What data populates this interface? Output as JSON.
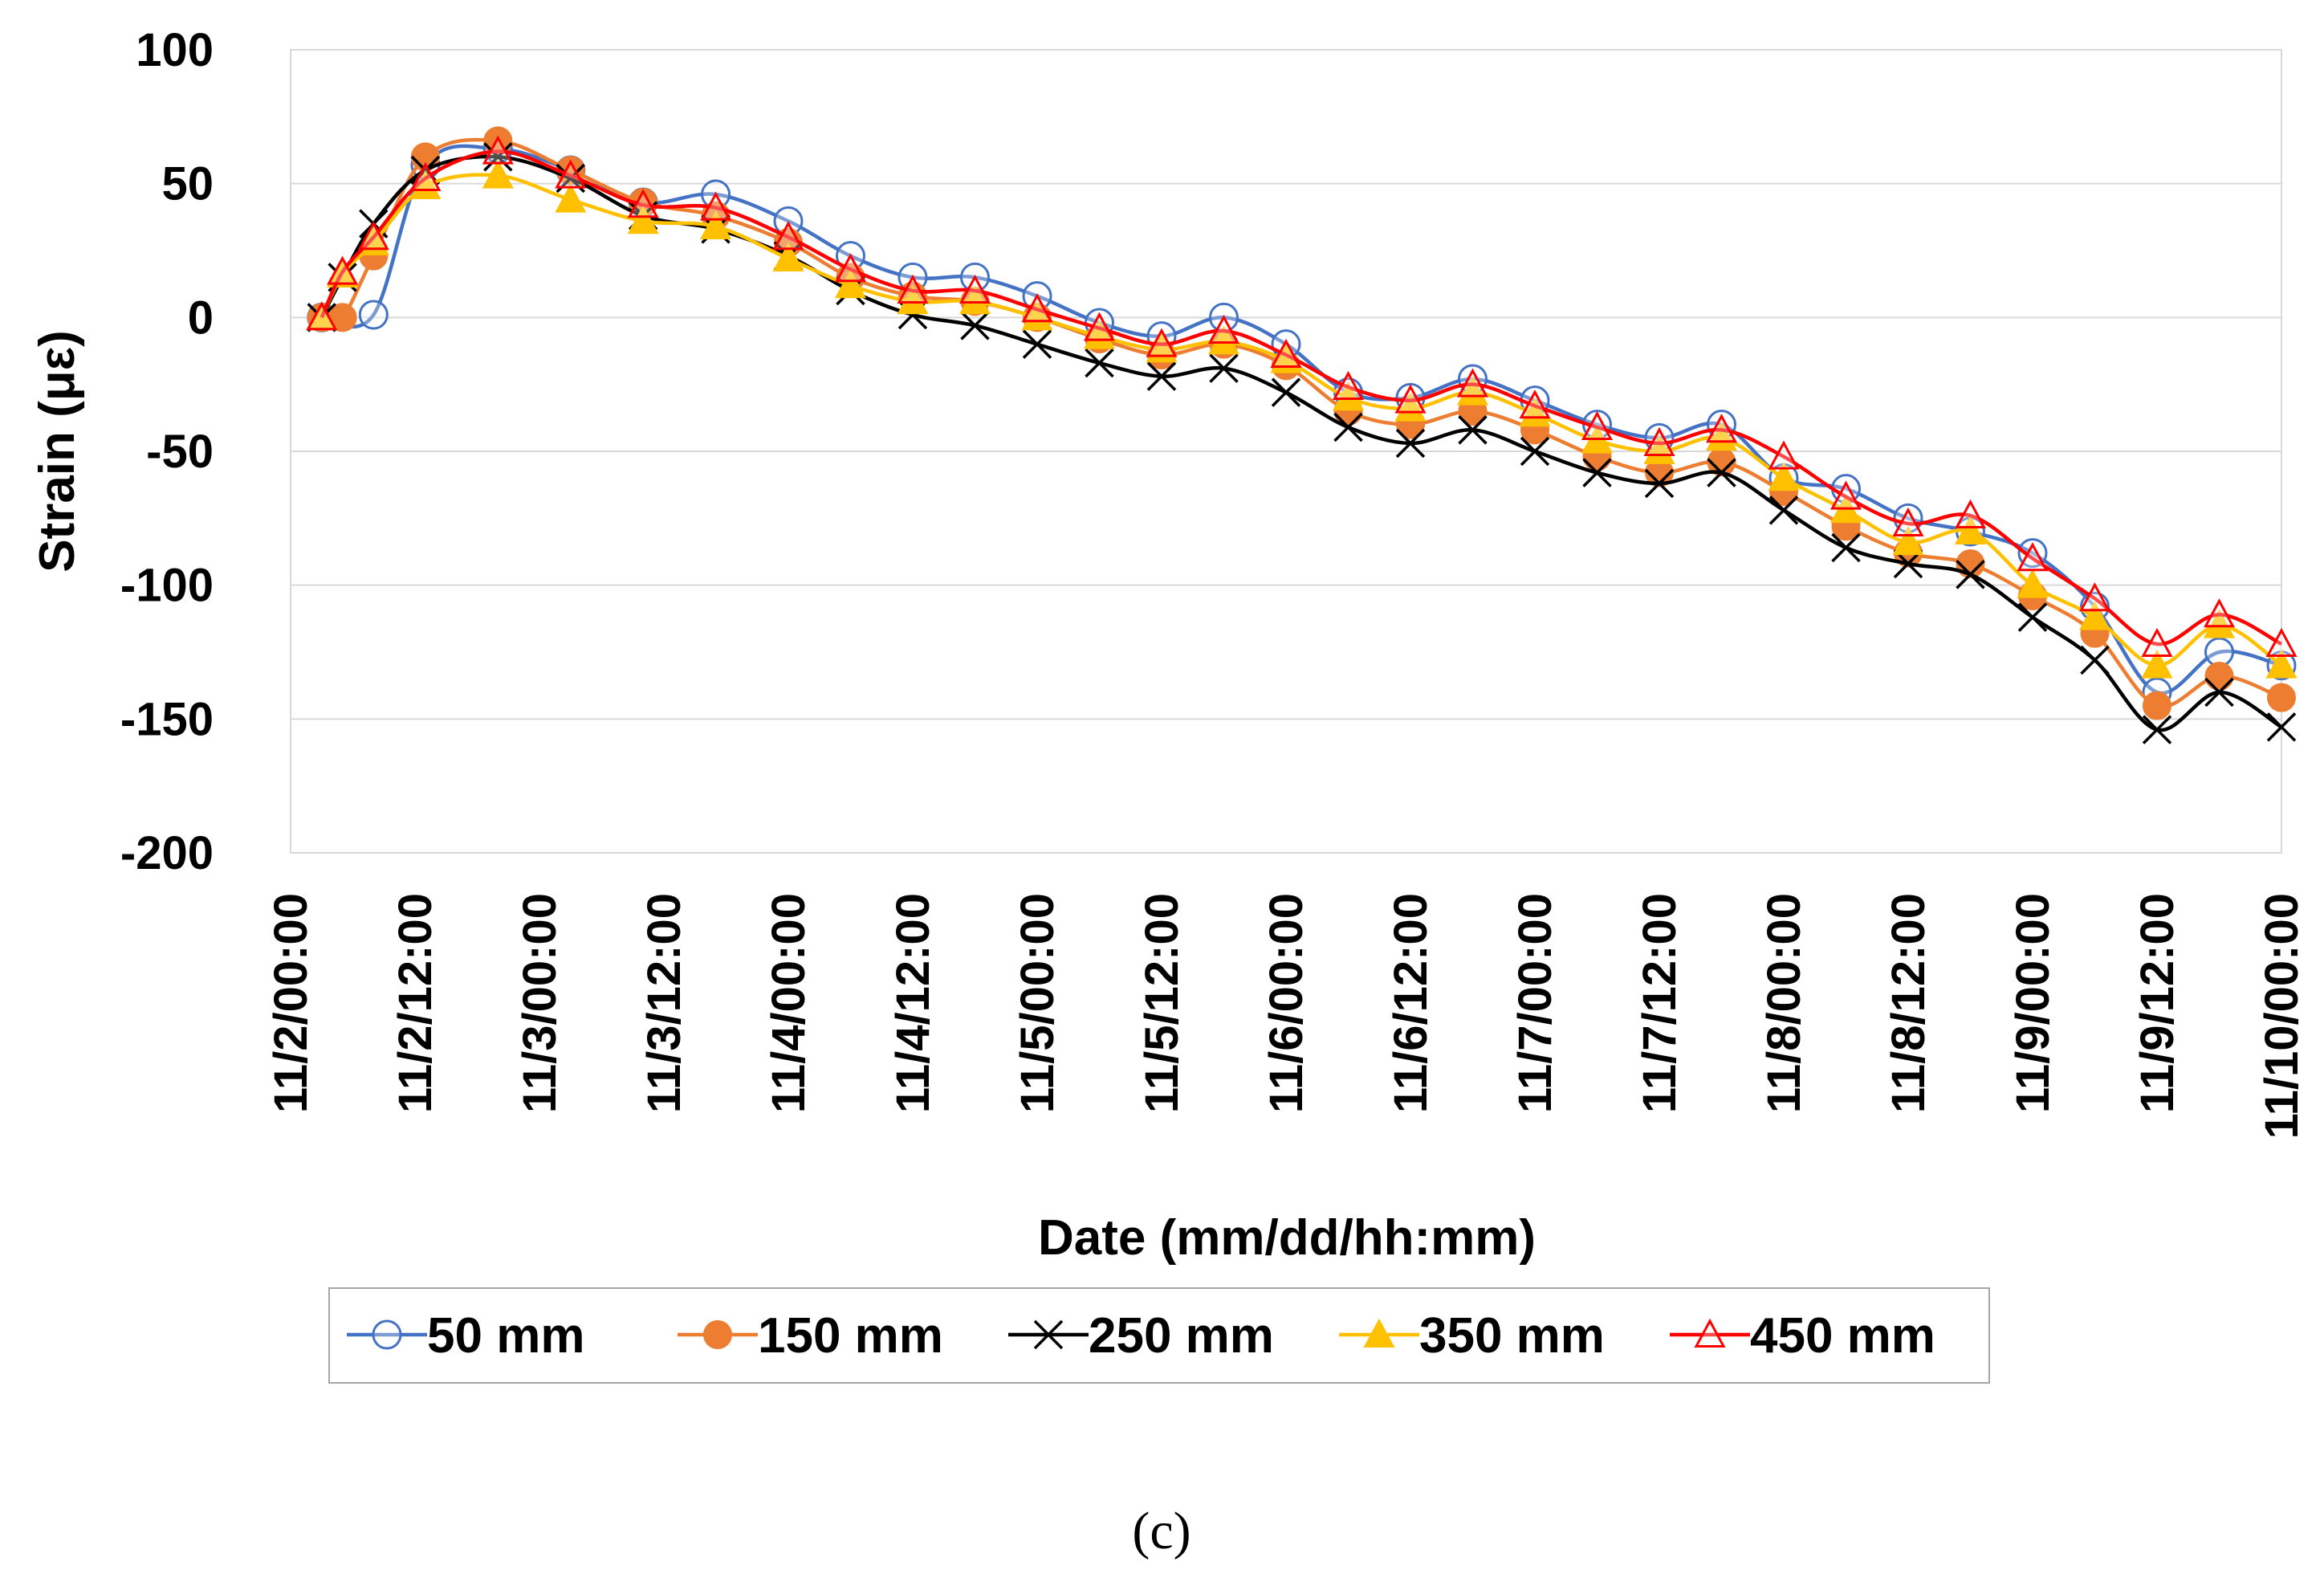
{
  "chart_data": {
    "type": "line",
    "title": "",
    "xlabel": "Date (mm/dd/hh:mm)",
    "ylabel": "Strain (με)",
    "panel_label": "(c)",
    "ylim": [
      -200,
      100
    ],
    "yticks": [
      100,
      50,
      0,
      -50,
      -100,
      -150,
      -200
    ],
    "xlim": [
      "11/2/00:00",
      "11/10/00:00"
    ],
    "x_tick_labels": [
      "11/2/00:00",
      "11/2/12:00",
      "11/3/00:00",
      "11/3/12:00",
      "11/4/00:00",
      "11/4/12:00",
      "11/5/00:00",
      "11/5/12:00",
      "11/6/00:00",
      "11/6/12:00",
      "11/7/00:00",
      "11/7/12:00",
      "11/8/00:00",
      "11/8/12:00",
      "11/9/00:00",
      "11/9/12:00",
      "11/10/00:00"
    ],
    "grid": "horizontal",
    "legend_position": "bottom",
    "x": [
      "11/2/03:00",
      "11/2/05:00",
      "11/2/08:00",
      "11/2/13:00",
      "11/2/20:00",
      "11/3/03:00",
      "11/3/10:00",
      "11/3/17:00",
      "11/4/00:00",
      "11/4/06:00",
      "11/4/12:00",
      "11/4/18:00",
      "11/5/00:00",
      "11/5/06:00",
      "11/5/12:00",
      "11/5/18:00",
      "11/6/00:00",
      "11/6/06:00",
      "11/6/12:00",
      "11/6/18:00",
      "11/7/00:00",
      "11/7/06:00",
      "11/7/12:00",
      "11/7/18:00",
      "11/8/00:00",
      "11/8/06:00",
      "11/8/12:00",
      "11/8/18:00",
      "11/9/00:00",
      "11/9/06:00",
      "11/9/12:00",
      "11/9/18:00",
      "11/10/00:00"
    ],
    "series": [
      {
        "name": "50 mm",
        "color": "#4472C4",
        "marker": "open-circle",
        "values": [
          0,
          null,
          1,
          57,
          63,
          55,
          43,
          46,
          36,
          23,
          15,
          15,
          8,
          -2,
          -7,
          0,
          -10,
          -28,
          -30,
          -23,
          -31,
          -40,
          -45,
          -40,
          -60,
          -64,
          -75,
          -80,
          -88,
          -108,
          -140,
          -125,
          -130
        ]
      },
      {
        "name": "150 mm",
        "color": "#ED7D31",
        "marker": "filled-circle",
        "values": [
          0,
          0,
          23,
          60,
          66,
          55,
          43,
          38,
          28,
          15,
          8,
          6,
          0,
          -8,
          -14,
          -10,
          -18,
          -35,
          -40,
          -35,
          -42,
          -52,
          -58,
          -54,
          -65,
          -78,
          -88,
          -92,
          -104,
          -118,
          -145,
          -134,
          -142
        ]
      },
      {
        "name": "250 mm",
        "color": "#000000",
        "marker": "cross",
        "values": [
          0,
          15,
          35,
          55,
          60,
          52,
          38,
          33,
          23,
          10,
          1,
          -3,
          -10,
          -17,
          -22,
          -19,
          -28,
          -41,
          -47,
          -42,
          -50,
          -58,
          -62,
          -58,
          -72,
          -86,
          -92,
          -96,
          -112,
          -128,
          -154,
          -140,
          -153
        ]
      },
      {
        "name": "350 mm",
        "color": "#FFC000",
        "marker": "filled-triangle",
        "values": [
          0,
          16,
          28,
          49,
          53,
          44,
          36,
          34,
          22,
          12,
          6,
          6,
          0,
          -7,
          -12,
          -9,
          -16,
          -30,
          -34,
          -28,
          -36,
          -46,
          -50,
          -45,
          -60,
          -72,
          -84,
          -80,
          -100,
          -112,
          -130,
          -115,
          -130
        ]
      },
      {
        "name": "450 mm",
        "color": "#FF0000",
        "marker": "open-triangle",
        "values": [
          0,
          17,
          30,
          52,
          62,
          53,
          42,
          41,
          30,
          18,
          10,
          10,
          3,
          -4,
          -10,
          -5,
          -14,
          -26,
          -31,
          -25,
          -33,
          -41,
          -47,
          -42,
          -52,
          -67,
          -77,
          -74,
          -90,
          -105,
          -122,
          -111,
          -122
        ]
      }
    ]
  }
}
